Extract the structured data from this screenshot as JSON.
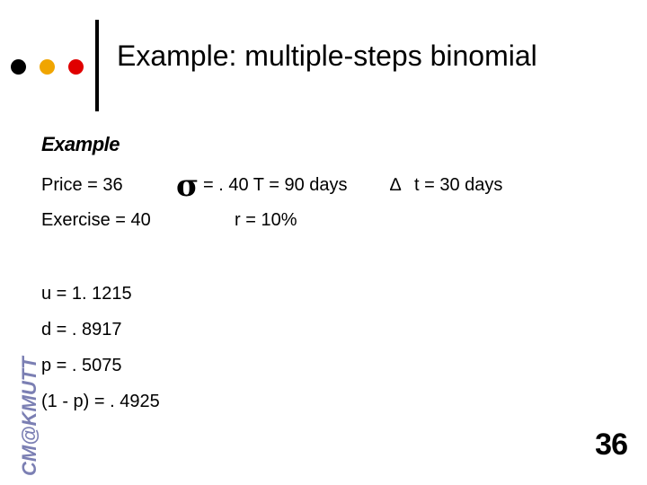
{
  "header": {
    "title": "Example: multiple-steps binomial",
    "dot_colors": [
      "#000000",
      "#f0a500",
      "#e00000"
    ]
  },
  "content": {
    "heading": "Example",
    "price": "Price = 36",
    "sigma_symbol": "σ",
    "sigma_params": "= . 40   T = 90 days",
    "delta_symbol": "∆",
    "delta_t": "t = 30 days",
    "exercise": "Exercise = 40",
    "rate": "r = 10%",
    "u": "u = 1. 1215",
    "d": "d = . 8917",
    "p": "p = . 5075",
    "one_minus_p": "(1 - p) = . 4925"
  },
  "footer": {
    "watermark": "CM@KMUTT",
    "page_number": "36"
  }
}
